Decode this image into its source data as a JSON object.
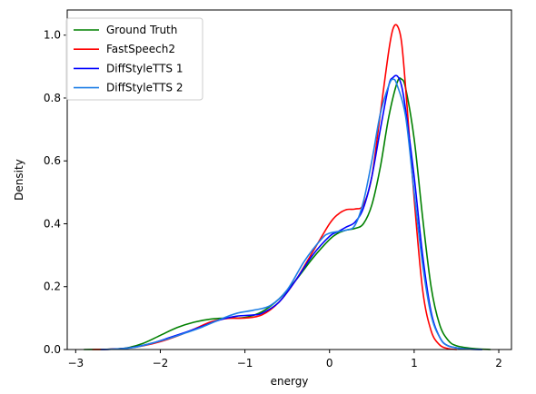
{
  "chart_data": {
    "type": "line",
    "xlabel": "energy",
    "ylabel": "Density",
    "xlim": [
      -3.1,
      2.15
    ],
    "ylim": [
      0,
      1.08
    ],
    "xticks": [
      -3,
      -2,
      -1,
      0,
      1,
      2
    ],
    "xtick_labels": [
      "−3",
      "−2",
      "−1",
      "0",
      "1",
      "2"
    ],
    "yticks": [
      0.0,
      0.2,
      0.4,
      0.6,
      0.8,
      1.0
    ],
    "ytick_labels": [
      "0.0",
      "0.2",
      "0.4",
      "0.6",
      "0.8",
      "1.0"
    ],
    "legend_position": "top-left",
    "grid": false,
    "series": [
      {
        "name": "Ground Truth",
        "color": "#008000",
        "points": [
          [
            -2.9,
            0.0
          ],
          [
            -2.6,
            0.001
          ],
          [
            -2.4,
            0.005
          ],
          [
            -2.2,
            0.02
          ],
          [
            -2.0,
            0.045
          ],
          [
            -1.8,
            0.07
          ],
          [
            -1.6,
            0.087
          ],
          [
            -1.4,
            0.097
          ],
          [
            -1.2,
            0.1
          ],
          [
            -1.0,
            0.102
          ],
          [
            -0.8,
            0.12
          ],
          [
            -0.6,
            0.16
          ],
          [
            -0.4,
            0.22
          ],
          [
            -0.2,
            0.29
          ],
          [
            0.0,
            0.35
          ],
          [
            0.1,
            0.37
          ],
          [
            0.2,
            0.38
          ],
          [
            0.3,
            0.385
          ],
          [
            0.4,
            0.4
          ],
          [
            0.5,
            0.46
          ],
          [
            0.6,
            0.58
          ],
          [
            0.7,
            0.74
          ],
          [
            0.8,
            0.85
          ],
          [
            0.85,
            0.86
          ],
          [
            0.9,
            0.83
          ],
          [
            1.0,
            0.67
          ],
          [
            1.1,
            0.42
          ],
          [
            1.2,
            0.2
          ],
          [
            1.3,
            0.08
          ],
          [
            1.4,
            0.03
          ],
          [
            1.5,
            0.012
          ],
          [
            1.7,
            0.003
          ],
          [
            1.9,
            0.0
          ]
        ]
      },
      {
        "name": "FastSpeech2",
        "color": "#ff0000",
        "points": [
          [
            -2.8,
            0.0
          ],
          [
            -2.6,
            0.001
          ],
          [
            -2.4,
            0.004
          ],
          [
            -2.2,
            0.012
          ],
          [
            -2.0,
            0.025
          ],
          [
            -1.8,
            0.043
          ],
          [
            -1.6,
            0.065
          ],
          [
            -1.4,
            0.088
          ],
          [
            -1.2,
            0.099
          ],
          [
            -1.0,
            0.1
          ],
          [
            -0.8,
            0.11
          ],
          [
            -0.6,
            0.15
          ],
          [
            -0.4,
            0.22
          ],
          [
            -0.2,
            0.31
          ],
          [
            0.0,
            0.4
          ],
          [
            0.1,
            0.43
          ],
          [
            0.2,
            0.445
          ],
          [
            0.3,
            0.447
          ],
          [
            0.4,
            0.46
          ],
          [
            0.5,
            0.55
          ],
          [
            0.6,
            0.75
          ],
          [
            0.7,
            0.95
          ],
          [
            0.75,
            1.02
          ],
          [
            0.8,
            1.03
          ],
          [
            0.85,
            0.98
          ],
          [
            0.9,
            0.83
          ],
          [
            1.0,
            0.48
          ],
          [
            1.1,
            0.19
          ],
          [
            1.2,
            0.06
          ],
          [
            1.3,
            0.015
          ],
          [
            1.4,
            0.003
          ],
          [
            1.5,
            0.0
          ]
        ]
      },
      {
        "name": "DiffStyleTTS 1",
        "color": "#0000ff",
        "points": [
          [
            -2.7,
            0.0
          ],
          [
            -2.5,
            0.002
          ],
          [
            -2.3,
            0.008
          ],
          [
            -2.1,
            0.02
          ],
          [
            -1.9,
            0.037
          ],
          [
            -1.7,
            0.055
          ],
          [
            -1.5,
            0.074
          ],
          [
            -1.3,
            0.094
          ],
          [
            -1.1,
            0.106
          ],
          [
            -0.9,
            0.11
          ],
          [
            -0.8,
            0.115
          ],
          [
            -0.6,
            0.15
          ],
          [
            -0.4,
            0.22
          ],
          [
            -0.2,
            0.3
          ],
          [
            0.0,
            0.36
          ],
          [
            0.1,
            0.375
          ],
          [
            0.2,
            0.39
          ],
          [
            0.3,
            0.405
          ],
          [
            0.4,
            0.45
          ],
          [
            0.5,
            0.55
          ],
          [
            0.6,
            0.7
          ],
          [
            0.7,
            0.84
          ],
          [
            0.75,
            0.865
          ],
          [
            0.8,
            0.87
          ],
          [
            0.85,
            0.84
          ],
          [
            0.9,
            0.76
          ],
          [
            1.0,
            0.55
          ],
          [
            1.1,
            0.3
          ],
          [
            1.2,
            0.12
          ],
          [
            1.3,
            0.04
          ],
          [
            1.4,
            0.012
          ],
          [
            1.6,
            0.002
          ],
          [
            1.8,
            0.0
          ]
        ]
      },
      {
        "name": "DiffStyleTTS 2",
        "color": "#1f7fe6",
        "points": [
          [
            -2.7,
            0.0
          ],
          [
            -2.5,
            0.002
          ],
          [
            -2.3,
            0.007
          ],
          [
            -2.1,
            0.02
          ],
          [
            -1.9,
            0.035
          ],
          [
            -1.7,
            0.053
          ],
          [
            -1.5,
            0.072
          ],
          [
            -1.3,
            0.095
          ],
          [
            -1.1,
            0.115
          ],
          [
            -0.9,
            0.125
          ],
          [
            -0.7,
            0.14
          ],
          [
            -0.5,
            0.19
          ],
          [
            -0.3,
            0.28
          ],
          [
            -0.1,
            0.35
          ],
          [
            0.0,
            0.37
          ],
          [
            0.2,
            0.38
          ],
          [
            0.3,
            0.395
          ],
          [
            0.4,
            0.47
          ],
          [
            0.5,
            0.6
          ],
          [
            0.6,
            0.75
          ],
          [
            0.7,
            0.84
          ],
          [
            0.75,
            0.86
          ],
          [
            0.8,
            0.84
          ],
          [
            0.9,
            0.74
          ],
          [
            1.0,
            0.5
          ],
          [
            1.1,
            0.27
          ],
          [
            1.2,
            0.11
          ],
          [
            1.3,
            0.04
          ],
          [
            1.4,
            0.012
          ],
          [
            1.6,
            0.002
          ],
          [
            1.8,
            0.0
          ]
        ]
      }
    ]
  }
}
